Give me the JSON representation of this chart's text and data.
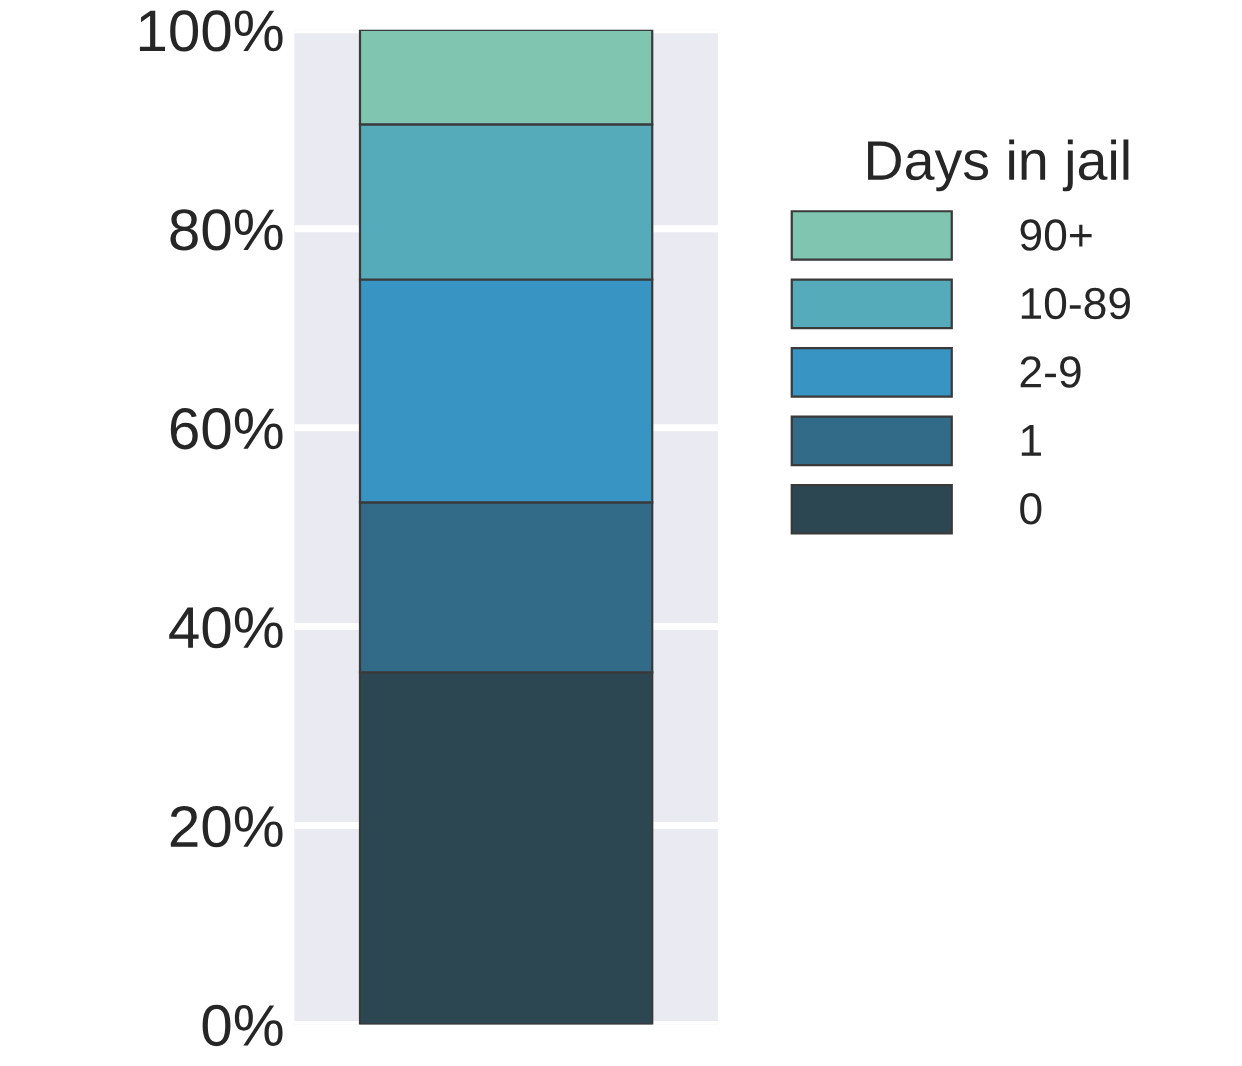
{
  "chart_data": {
    "type": "bar",
    "stacked": true,
    "categories": [
      null
    ],
    "series": [
      {
        "name": "0",
        "color": "#2c4752",
        "values": [
          35.4
        ]
      },
      {
        "name": "1",
        "color": "#326b87",
        "values": [
          17.1
        ]
      },
      {
        "name": "2-9",
        "color": "#3894c3",
        "values": [
          22.4
        ]
      },
      {
        "name": "10-89",
        "color": "#56abba",
        "values": [
          15.6
        ]
      },
      {
        "name": "90+",
        "color": "#7fc5b0",
        "values": [
          9.5
        ]
      }
    ],
    "ylim": [
      0,
      100
    ],
    "yticks": [
      {
        "value": 0,
        "label": "0%"
      },
      {
        "value": 20,
        "label": "20%"
      },
      {
        "value": 40,
        "label": "40%"
      },
      {
        "value": 60,
        "label": "60%"
      },
      {
        "value": 80,
        "label": "80%"
      },
      {
        "value": 100,
        "label": "100%"
      }
    ],
    "tick_labels": "y",
    "grid": "y",
    "legend": "right",
    "legend_title": "Days in jail"
  }
}
